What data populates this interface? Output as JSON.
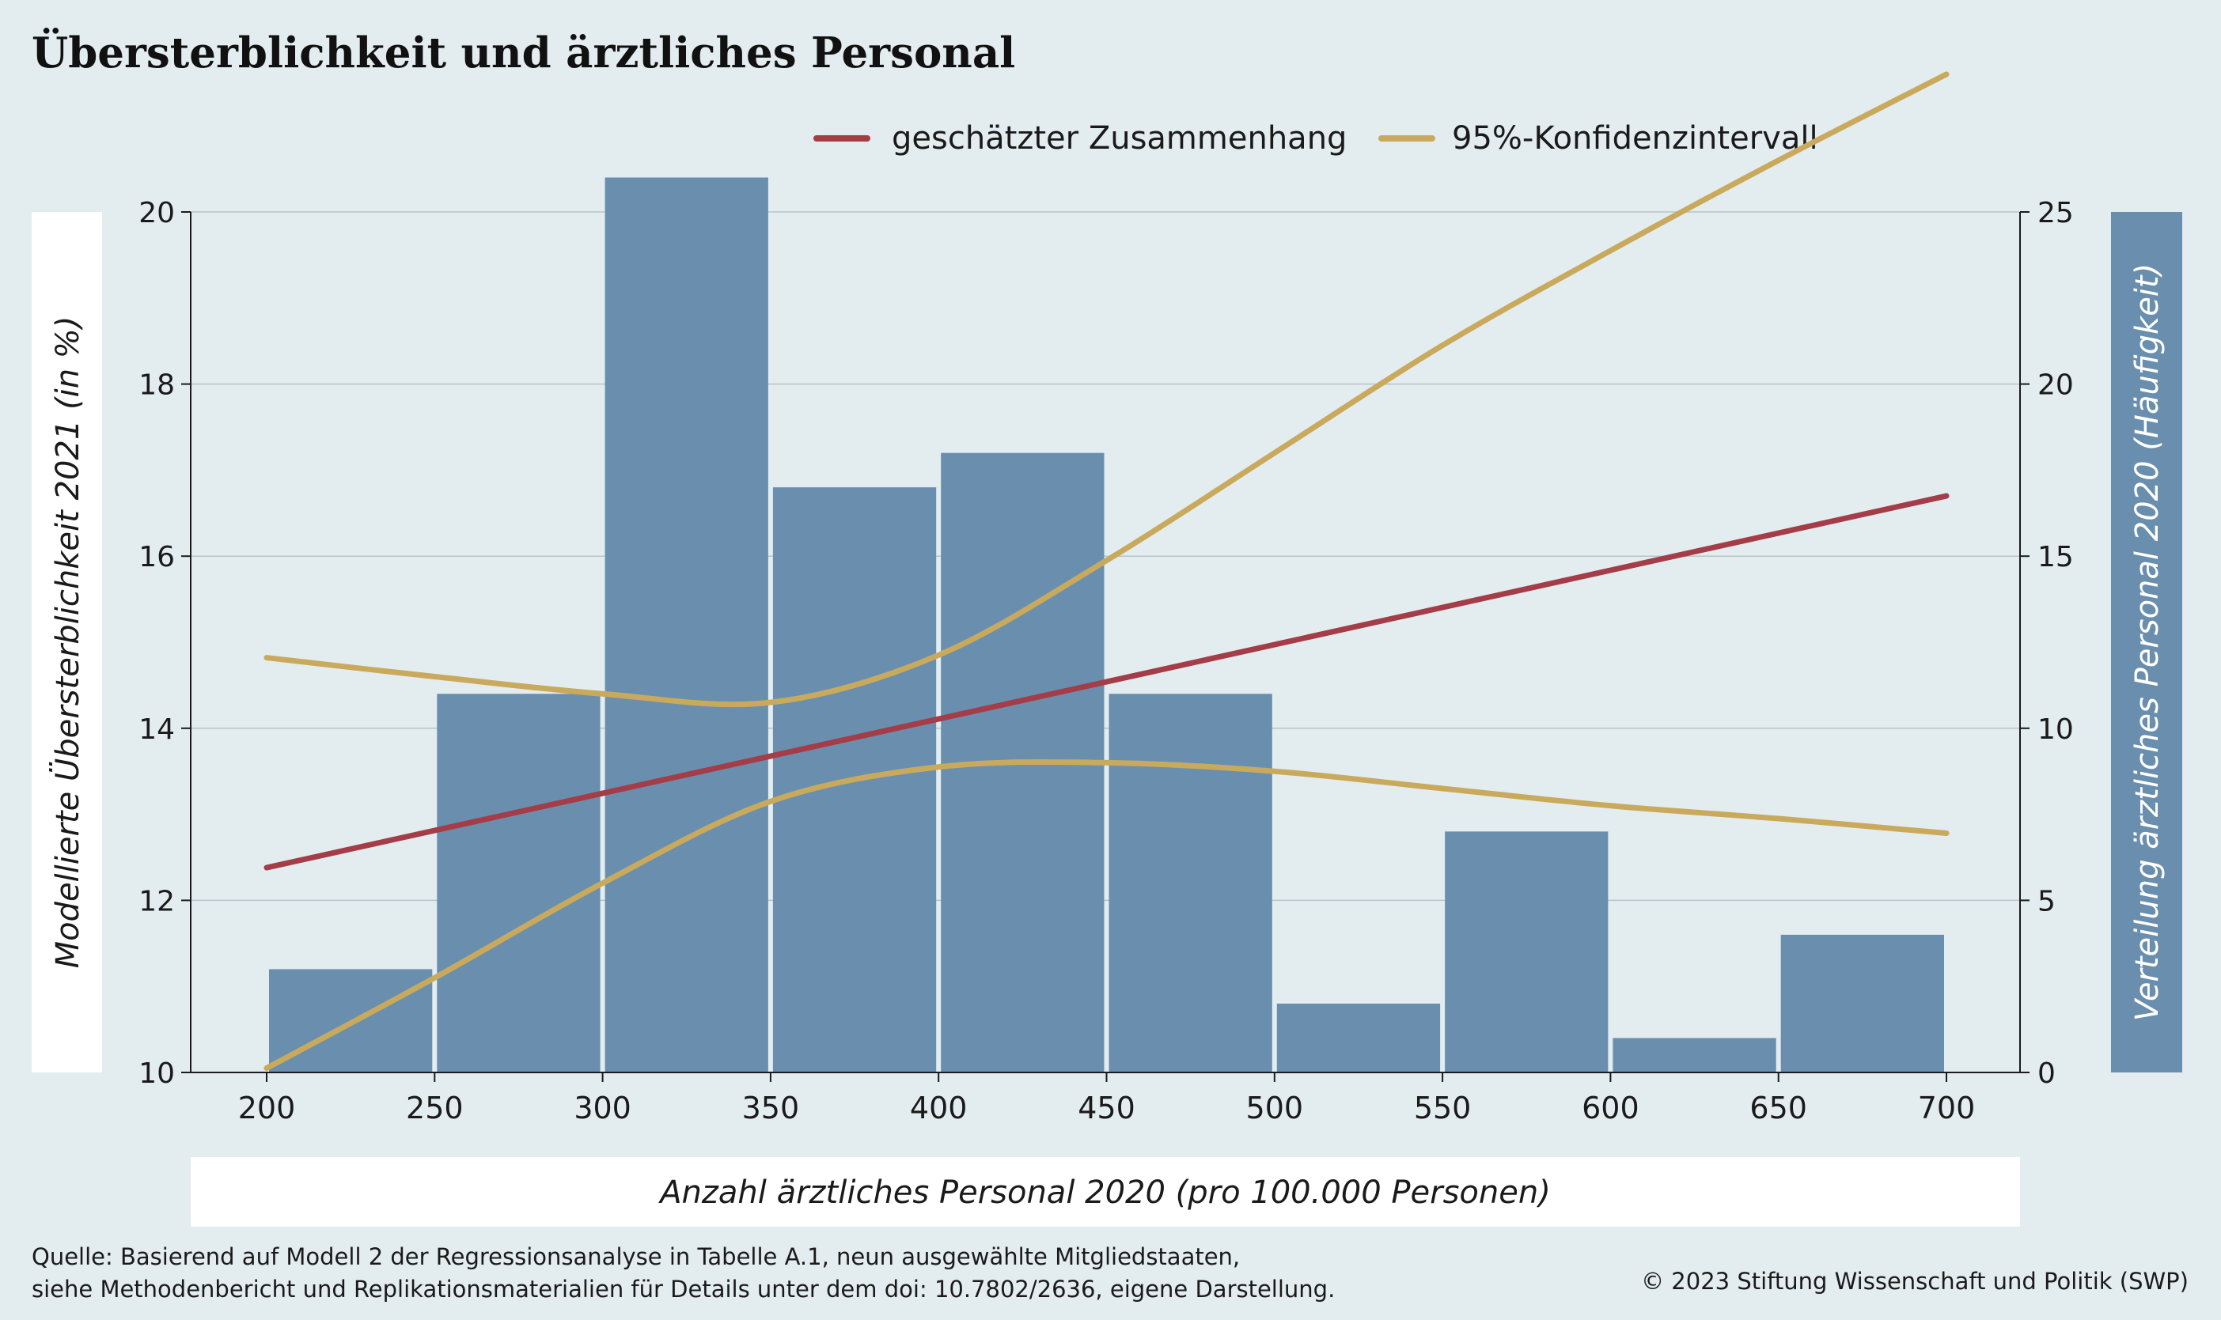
{
  "chart_data": {
    "type": "bar+line",
    "title": "Übersterblichkeit und ärztliches Personal",
    "xlabel": "Anzahl ärztliches Personal 2020 (pro 100.000 Personen)",
    "ylabel_left": "Modellierte Übersterblichkeit 2021 (in %)",
    "ylabel_right": "Verteilung ärztliches Personal 2020 (Häufigkeit)",
    "xlim": [
      175,
      720
    ],
    "ylim_left": [
      10,
      20
    ],
    "ylim_right": [
      0,
      25
    ],
    "x_ticks": [
      200,
      250,
      300,
      350,
      400,
      450,
      500,
      550,
      600,
      650,
      700
    ],
    "y_left_ticks": [
      10,
      12,
      14,
      16,
      18,
      20
    ],
    "y_right_ticks": [
      0,
      5,
      10,
      15,
      20,
      25
    ],
    "grid": "horizontal",
    "legend_position": "top-right",
    "histogram": {
      "bin_start": [
        200,
        250,
        300,
        350,
        400,
        450,
        500,
        550,
        600,
        650
      ],
      "bin_width": 50,
      "counts": [
        3,
        11,
        26,
        17,
        18,
        11,
        2,
        7,
        1,
        4
      ],
      "color": "#6a8fae"
    },
    "series": [
      {
        "name": "geschätzter Zusammenhang",
        "color": "#a43d48",
        "x": [
          200,
          700
        ],
        "y": [
          12.38,
          16.7
        ]
      },
      {
        "name": "95%-Konfidenzintervall",
        "color": "#c9aa5c",
        "x": [
          200,
          250,
          300,
          350,
          400,
          450,
          500,
          550,
          600,
          650,
          700
        ],
        "y": [
          14.82,
          14.6,
          14.4,
          14.3,
          14.85,
          15.95,
          17.2,
          18.45,
          19.55,
          20.6,
          21.6
        ]
      },
      {
        "name": "95%-Konfidenzintervall",
        "color": "#c9aa5c",
        "x": [
          200,
          250,
          300,
          350,
          400,
          450,
          500,
          550,
          600,
          650,
          700
        ],
        "y": [
          10.05,
          11.1,
          12.2,
          13.15,
          13.55,
          13.6,
          13.5,
          13.3,
          13.1,
          12.95,
          12.78
        ]
      }
    ],
    "legend": [
      "geschätzter Zusammenhang",
      "95%-Konfidenzintervall"
    ]
  },
  "footer": {
    "source_line1": "Quelle: Basierend auf Modell 2 der Regressionsanalyse in Tabelle A.1, neun ausgewählte Mitgliedstaaten,",
    "source_line2": "siehe Methodenbericht und Replikationsmaterialien für Details unter dem doi: 10.7802/2636, eigene Darstellung.",
    "copyright": "© 2023 Stiftung Wissenschaft und Politik (SWP)"
  },
  "colors": {
    "background": "#e3ecef",
    "bar": "#6a8fae",
    "estimate": "#a43d48",
    "confidence": "#c9aa5c"
  }
}
